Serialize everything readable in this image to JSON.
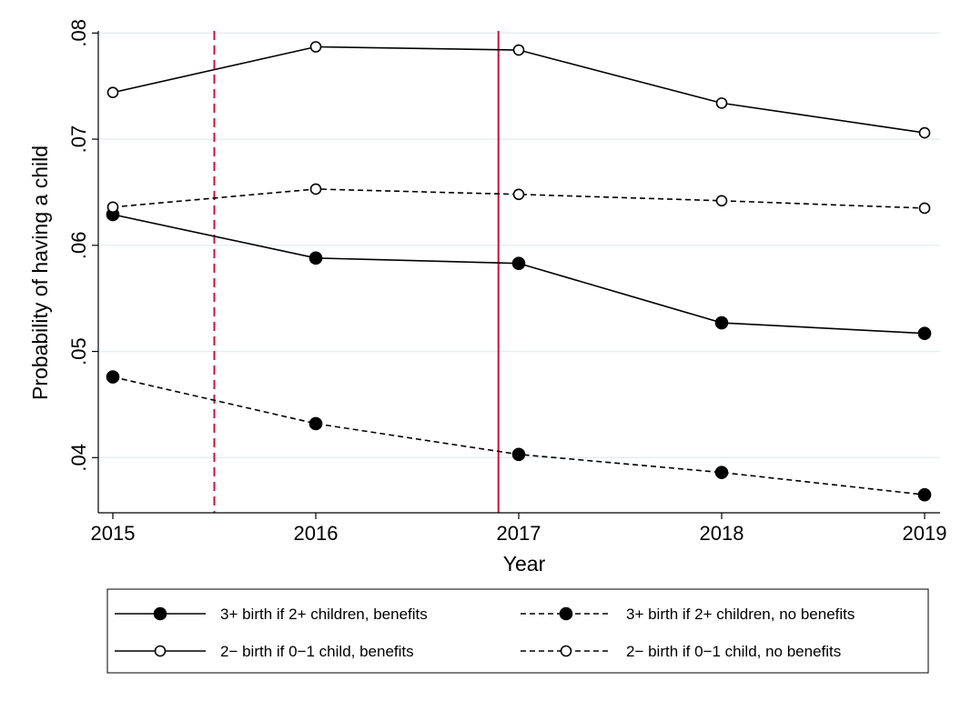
{
  "chart_data": {
    "type": "line",
    "xlabel": "Year",
    "ylabel": "Probability of having a child",
    "x": [
      2015,
      2016,
      2017,
      2018,
      2019
    ],
    "xlim": [
      2015,
      2019
    ],
    "ylim": [
      0.0348,
      0.0802
    ],
    "xticks": [
      2015,
      2016,
      2017,
      2018,
      2019
    ],
    "xtick_labels": [
      "2015",
      "2016",
      "2017",
      "2018",
      "2019"
    ],
    "yticks": [
      0.04,
      0.05,
      0.06,
      0.07,
      0.08
    ],
    "ytick_labels": [
      ".04",
      ".05",
      ".06",
      ".07",
      ".08"
    ],
    "grid": "horizontal",
    "legend_position": "bottom",
    "vertical_lines": [
      {
        "x": 2015.5,
        "style": "dashed",
        "color": "#d0103a"
      },
      {
        "x": 2016.9,
        "style": "solid",
        "color": "#d0103a"
      }
    ],
    "series": [
      {
        "name": "3+ birth if 2+ children, benefits",
        "values": [
          0.0629,
          0.0588,
          0.0583,
          0.0527,
          0.0517
        ],
        "line": "solid",
        "marker": "filled"
      },
      {
        "name": "3+ birth if 2+ children, no benefits",
        "values": [
          0.0476,
          0.0432,
          0.0403,
          0.0386,
          0.0365
        ],
        "line": "dashed",
        "marker": "filled"
      },
      {
        "name": "2− birth if 0−1 child, benefits",
        "values": [
          0.0744,
          0.0787,
          0.0784,
          0.0734,
          0.0706
        ],
        "line": "solid",
        "marker": "hollow"
      },
      {
        "name": "2− birth if 0−1 child, no benefits",
        "values": [
          0.0636,
          0.0653,
          0.0648,
          0.0642,
          0.0635
        ],
        "line": "dashed",
        "marker": "hollow"
      }
    ]
  }
}
